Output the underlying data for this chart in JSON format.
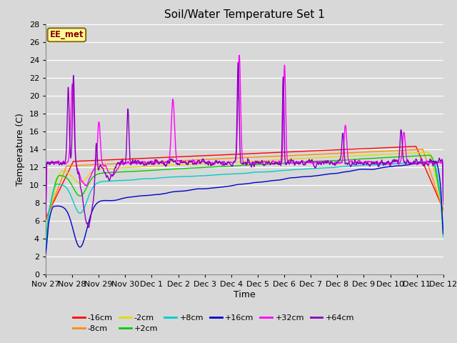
{
  "title": "Soil/Water Temperature Set 1",
  "ylabel": "Temperature (C)",
  "xlabel": "Time",
  "ylim": [
    0,
    28
  ],
  "yticks": [
    0,
    2,
    4,
    6,
    8,
    10,
    12,
    14,
    16,
    18,
    20,
    22,
    24,
    26,
    28
  ],
  "background_color": "#d8d8d8",
  "plot_bg_color": "#d8d8d8",
  "series_colors": {
    "-16cm": "#ff0000",
    "-8cm": "#ff8c00",
    "-2cm": "#dddd00",
    "+2cm": "#00cc00",
    "+8cm": "#00cccc",
    "+16cm": "#0000cc",
    "+32cm": "#ff00ff",
    "+64cm": "#8800bb"
  },
  "annotation_text": "EE_met",
  "annotation_bg": "#ffff99",
  "annotation_border": "#8b6914",
  "annotation_text_color": "#8b0000",
  "xtick_labels": [
    "Nov 27",
    "Nov 28",
    "Nov 29",
    "Nov 30",
    "Dec 1",
    "Dec 2",
    "Dec 3",
    "Dec 4",
    "Dec 5",
    "Dec 6",
    "Dec 7",
    "Dec 8",
    "Dec 9",
    "Dec 10",
    "Dec 11",
    "Dec 12"
  ],
  "legend_row1": [
    "-16cm",
    "-8cm",
    "-2cm",
    "+2cm",
    "+8cm",
    "+16cm"
  ],
  "legend_row2": [
    "+32cm",
    "+64cm"
  ]
}
